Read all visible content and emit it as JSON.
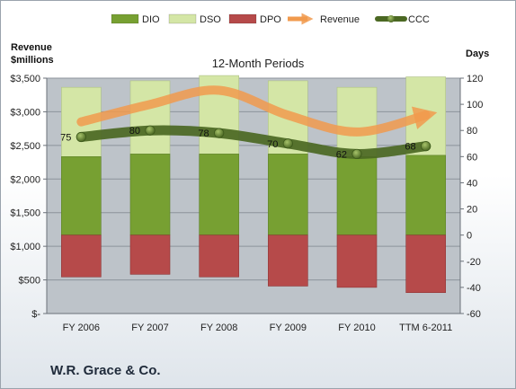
{
  "company": "W.R. Grace & Co.",
  "chart_data": {
    "type": "bar",
    "title": "12-Month Periods",
    "ylabel_left": "Revenue $millions",
    "ylabel_right": "Days",
    "categories": [
      "FY 2006",
      "FY 2007",
      "FY 2008",
      "FY 2009",
      "FY 2010",
      "TTM 6-2011"
    ],
    "left_axis": {
      "min": 0,
      "max": 3500,
      "ticks": [
        0,
        500,
        1000,
        1500,
        2000,
        2500,
        3000,
        3500
      ],
      "tick_labels": [
        "$-",
        "$500",
        "$1,000",
        "$1,500",
        "$2,000",
        "$2,500",
        "$3,000",
        "$3,500"
      ]
    },
    "right_axis": {
      "min": -60,
      "max": 120,
      "ticks": [
        -60,
        -40,
        -20,
        0,
        20,
        40,
        60,
        80,
        100,
        120
      ],
      "tick_labels": [
        "-60",
        "-40",
        "-20",
        "0",
        "20",
        "40",
        "60",
        "80",
        "100",
        "120"
      ]
    },
    "series": [
      {
        "name": "DIO",
        "color": "#77a032",
        "axis": "right",
        "values": [
          60,
          62,
          62,
          62,
          60,
          61
        ]
      },
      {
        "name": "DSO",
        "color": "#d4e6a6",
        "axis": "right",
        "values": [
          53,
          56,
          60,
          56,
          53,
          60
        ]
      },
      {
        "name": "DPO",
        "color": "#b64a4a",
        "axis": "right",
        "values": [
          -32,
          -30,
          -32,
          -39,
          -40,
          -44
        ]
      },
      {
        "name": "Revenue",
        "color": "#f19a4d",
        "axis": "left",
        "values": [
          2850,
          3110,
          3320,
          2950,
          2700,
          2950
        ]
      },
      {
        "name": "CCC",
        "color": "#4b6823",
        "axis": "right",
        "values": [
          75,
          80,
          78,
          70,
          62,
          68
        ]
      }
    ],
    "data_labels": [
      "75",
      "80",
      "78",
      "70",
      "62",
      "68"
    ],
    "legend_position": "top",
    "grid": true
  }
}
